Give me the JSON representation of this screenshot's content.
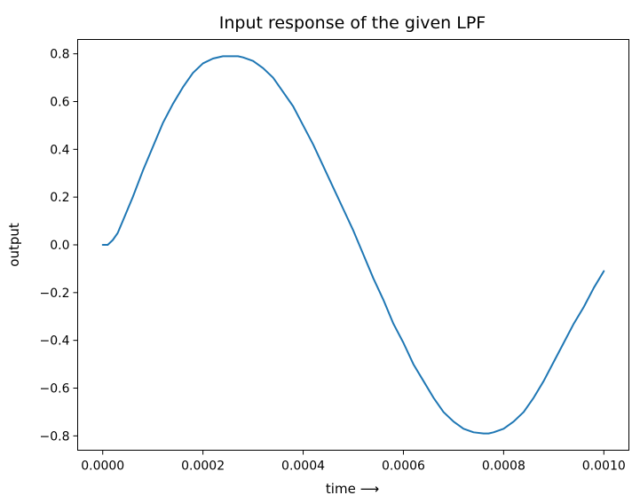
{
  "chart_data": {
    "type": "line",
    "title": "Input response of the given LPF",
    "xlabel": "time ⟶",
    "ylabel": "output",
    "xlim": [
      -5e-05,
      0.00105
    ],
    "ylim": [
      -0.86,
      0.86
    ],
    "x_ticks": [
      0.0,
      0.0002,
      0.0004,
      0.0006,
      0.0008,
      0.001
    ],
    "x_tick_labels": [
      "0.0000",
      "0.0002",
      "0.0004",
      "0.0006",
      "0.0008",
      "0.0010"
    ],
    "y_ticks": [
      0.8,
      0.6,
      0.4,
      0.2,
      0.0,
      -0.2,
      -0.4,
      -0.6,
      -0.8
    ],
    "y_tick_labels": [
      "0.8",
      "0.6",
      "0.4",
      "0.2",
      "0.0",
      "−0.2",
      "−0.4",
      "−0.6",
      "−0.8"
    ],
    "grid": false,
    "series": [
      {
        "color": "#1f77b4",
        "x": [
          0.0,
          1e-05,
          2e-05,
          3e-05,
          4e-05,
          5e-05,
          6e-05,
          8e-05,
          0.0001,
          0.00012,
          0.00014,
          0.00016,
          0.00018,
          0.0002,
          0.00022,
          0.00024,
          0.00026,
          0.00027,
          0.00028,
          0.0003,
          0.00032,
          0.00034,
          0.00036,
          0.00038,
          0.0004,
          0.00042,
          0.00044,
          0.00046,
          0.00048,
          0.0005,
          0.00052,
          0.00054,
          0.00056,
          0.00058,
          0.0006,
          0.00062,
          0.00064,
          0.00066,
          0.00068,
          0.0007,
          0.00072,
          0.00074,
          0.00076,
          0.00077,
          0.00078,
          0.0008,
          0.00082,
          0.00084,
          0.00086,
          0.00088,
          0.0009,
          0.00092,
          0.00094,
          0.00096,
          0.00098,
          0.001
        ],
        "y": [
          0.0,
          0.0,
          0.02,
          0.05,
          0.1,
          0.15,
          0.2,
          0.31,
          0.41,
          0.51,
          0.59,
          0.66,
          0.72,
          0.76,
          0.78,
          0.79,
          0.79,
          0.79,
          0.785,
          0.77,
          0.74,
          0.7,
          0.64,
          0.58,
          0.5,
          0.42,
          0.33,
          0.24,
          0.15,
          0.06,
          -0.04,
          -0.14,
          -0.23,
          -0.33,
          -0.41,
          -0.5,
          -0.57,
          -0.64,
          -0.7,
          -0.74,
          -0.77,
          -0.785,
          -0.79,
          -0.79,
          -0.785,
          -0.77,
          -0.74,
          -0.7,
          -0.64,
          -0.57,
          -0.49,
          -0.41,
          -0.33,
          -0.26,
          -0.18,
          -0.11
        ]
      }
    ]
  }
}
